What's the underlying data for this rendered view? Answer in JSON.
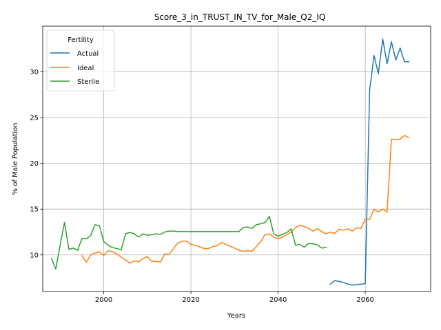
{
  "chart_data": {
    "type": "line",
    "title": "Score_3_in_TRUST_IN_TV_for_Male_Q2_IQ",
    "xlabel": "Years",
    "ylabel": "% of Male Population",
    "xlim": [
      1986,
      2075
    ],
    "ylim": [
      6.0,
      35.0
    ],
    "xticks": [
      2000,
      2020,
      2040,
      2060
    ],
    "yticks": [
      10,
      15,
      20,
      25,
      30
    ],
    "grid": true,
    "legend": {
      "title": "Fertility",
      "placement": "top-left"
    },
    "series": [
      {
        "name": "Actual",
        "color": "#1f77b4",
        "x": [
          2052,
          2053,
          2054,
          2055,
          2056,
          2057,
          2058,
          2059,
          2060,
          2061,
          2062,
          2063,
          2064,
          2065,
          2066,
          2067,
          2068,
          2069,
          2070
        ],
        "y": [
          6.8,
          7.2,
          7.1,
          7.0,
          6.8,
          6.7,
          6.75,
          6.8,
          6.85,
          28.0,
          31.8,
          29.8,
          33.6,
          30.9,
          33.3,
          31.3,
          32.6,
          31.1,
          31.1
        ]
      },
      {
        "name": "Ideal",
        "color": "#ff7f0e",
        "x": [
          1995,
          1996,
          1997,
          1998,
          1999,
          2000,
          2001,
          2002,
          2003,
          2004,
          2005,
          2006,
          2007,
          2008,
          2009,
          2010,
          2011,
          2012,
          2013,
          2014,
          2015,
          2016,
          2017,
          2018,
          2019,
          2020,
          2021,
          2022,
          2023,
          2024,
          2025,
          2026,
          2027,
          2028,
          2029,
          2030,
          2031,
          2032,
          2033,
          2034,
          2035,
          2036,
          2037,
          2038,
          2039,
          2040,
          2041,
          2042,
          2043,
          2044,
          2045,
          2046,
          2047,
          2048,
          2049,
          2050,
          2051,
          2052,
          2053,
          2054,
          2055,
          2056,
          2057,
          2058,
          2059,
          2060,
          2061,
          2062,
          2063,
          2064,
          2065,
          2066,
          2067,
          2068,
          2069,
          2070
        ],
        "y": [
          9.9,
          9.2,
          10.0,
          10.2,
          10.35,
          9.95,
          10.45,
          10.35,
          10.1,
          9.75,
          9.45,
          9.1,
          9.35,
          9.25,
          9.6,
          9.8,
          9.3,
          9.3,
          9.2,
          10.1,
          10.05,
          10.7,
          11.3,
          11.5,
          11.5,
          11.15,
          11.05,
          10.9,
          10.7,
          10.7,
          10.9,
          11.0,
          11.35,
          11.15,
          10.95,
          10.75,
          10.5,
          10.4,
          10.45,
          10.4,
          10.9,
          11.45,
          12.2,
          12.3,
          11.95,
          11.75,
          11.95,
          12.2,
          12.5,
          13.0,
          13.25,
          13.1,
          12.9,
          12.6,
          12.85,
          12.55,
          12.3,
          12.5,
          12.35,
          12.8,
          12.7,
          12.85,
          12.6,
          12.95,
          12.9,
          13.9,
          13.9,
          15.0,
          14.7,
          15.0,
          14.7,
          22.65,
          22.6,
          22.65,
          23.05,
          22.8
        ]
      },
      {
        "name": "Sterile",
        "color": "#2ca02c",
        "x": [
          1988,
          1989,
          1990,
          1991,
          1992,
          1993,
          1994,
          1995,
          1996,
          1997,
          1998,
          1999,
          2000,
          2001,
          2002,
          2003,
          2004,
          2005,
          2006,
          2007,
          2008,
          2009,
          2010,
          2011,
          2012,
          2013,
          2014,
          2015,
          2016,
          2017,
          2018,
          2019,
          2020,
          2021,
          2022,
          2023,
          2024,
          2025,
          2026,
          2027,
          2028,
          2029,
          2030,
          2031,
          2032,
          2033,
          2034,
          2035,
          2036,
          2037,
          2038,
          2039,
          2040,
          2041,
          2042,
          2043,
          2044,
          2045,
          2046,
          2047,
          2048,
          2049,
          2050,
          2051
        ],
        "y": [
          9.6,
          8.45,
          11.1,
          13.55,
          10.6,
          10.75,
          10.5,
          11.8,
          11.75,
          12.1,
          13.3,
          13.2,
          11.45,
          11.05,
          10.8,
          10.7,
          10.55,
          12.3,
          12.45,
          12.3,
          11.95,
          12.3,
          12.15,
          12.2,
          12.3,
          12.25,
          12.5,
          12.6,
          12.6,
          12.55,
          12.55,
          12.55,
          12.55,
          12.55,
          12.55,
          12.55,
          12.55,
          12.55,
          12.55,
          12.55,
          12.55,
          12.55,
          12.55,
          12.55,
          13.0,
          13.05,
          12.9,
          13.3,
          13.4,
          13.55,
          14.2,
          12.3,
          12.05,
          12.25,
          12.45,
          12.85,
          11.05,
          11.15,
          10.85,
          11.25,
          11.2,
          11.1,
          10.75,
          10.8
        ]
      }
    ]
  }
}
